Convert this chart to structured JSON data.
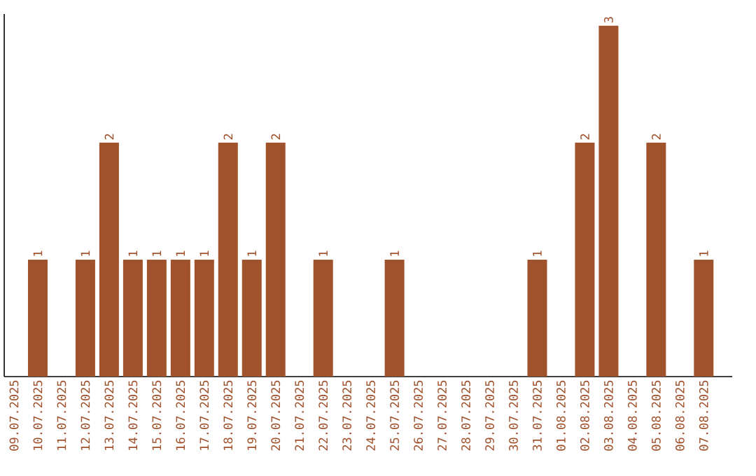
{
  "chart_data": {
    "type": "bar",
    "categories": [
      "09.07.2025",
      "10.07.2025",
      "11.07.2025",
      "12.07.2025",
      "13.07.2025",
      "14.07.2025",
      "15.07.2025",
      "16.07.2025",
      "17.07.2025",
      "18.07.2025",
      "19.07.2025",
      "20.07.2025",
      "21.07.2025",
      "22.07.2025",
      "23.07.2025",
      "24.07.2025",
      "25.07.2025",
      "26.07.2025",
      "27.07.2025",
      "28.07.2025",
      "29.07.2025",
      "30.07.2025",
      "31.07.2025",
      "01.08.2025",
      "02.08.2025",
      "03.08.2025",
      "04.08.2025",
      "05.08.2025",
      "06.08.2025",
      "07.08.2025"
    ],
    "values": [
      0,
      1,
      0,
      1,
      2,
      1,
      1,
      1,
      1,
      2,
      1,
      2,
      0,
      1,
      0,
      0,
      1,
      0,
      0,
      0,
      0,
      0,
      1,
      0,
      2,
      3,
      0,
      2,
      0,
      1
    ],
    "value_labels": [
      null,
      "1",
      null,
      "1",
      "2",
      "1",
      "1",
      "1",
      "1",
      "2",
      "1",
      "2",
      null,
      "1",
      null,
      null,
      "1",
      null,
      null,
      null,
      null,
      null,
      "1",
      null,
      "2",
      "3",
      null,
      "2",
      null,
      "1"
    ],
    "color": "#a0522d",
    "ylim": [
      0,
      3.1
    ],
    "tick_labels": "x"
  }
}
